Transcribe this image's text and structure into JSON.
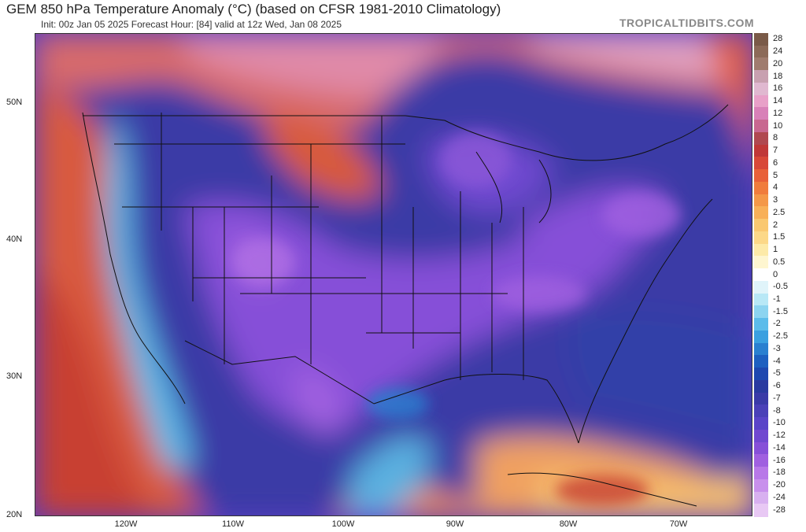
{
  "header": {
    "title": "GEM 850 hPa Temperature Anomaly (°C) (based on CFSR 1981-2010 Climatology)",
    "subtitle": "Init: 00z Jan 05 2025   Forecast Hour: [84]   valid at 12z Wed, Jan 08 2025",
    "brand": "TROPICALTIDBITS.COM"
  },
  "axes": {
    "lat_labels": [
      "50N",
      "40N",
      "30N",
      "20N"
    ],
    "lon_labels": [
      "120W",
      "110W",
      "100W",
      "90W",
      "80W",
      "70W"
    ]
  },
  "colorbar": {
    "labels": [
      "28",
      "24",
      "20",
      "18",
      "16",
      "14",
      "12",
      "10",
      "8",
      "7",
      "6",
      "5",
      "4",
      "3",
      "2.5",
      "2",
      "1.5",
      "1",
      "0.5",
      "0",
      "-0.5",
      "-1",
      "-1.5",
      "-2",
      "-2.5",
      "-3",
      "-4",
      "-5",
      "-6",
      "-7",
      "-8",
      "-10",
      "-12",
      "-14",
      "-16",
      "-18",
      "-20",
      "-24",
      "-28"
    ],
    "colors": [
      "#7a5a48",
      "#8c6a58",
      "#a07c6e",
      "#c8a0b0",
      "#e0b8d0",
      "#e8a0c8",
      "#d880b8",
      "#c86890",
      "#b04850",
      "#c03838",
      "#d84838",
      "#e86038",
      "#f07c3c",
      "#f49848",
      "#f8b058",
      "#fac870",
      "#fcd888",
      "#fdeaa8",
      "#fef6d0",
      "#ffffff",
      "#e0f4fa",
      "#b8e8f6",
      "#8cd4f0",
      "#5cbcea",
      "#3aa0e0",
      "#2a80d0",
      "#1e60c0",
      "#1e48b0",
      "#2a3aa0",
      "#3a3aa8",
      "#4a40b8",
      "#5a44c8",
      "#7048d0",
      "#8650d8",
      "#a060e0",
      "#b878e8",
      "#c890ec",
      "#d8b0f0",
      "#e8c8f4"
    ]
  }
}
